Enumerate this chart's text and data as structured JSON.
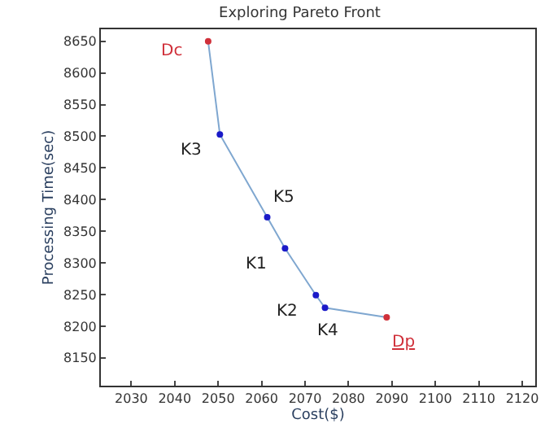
{
  "chart_data": {
    "type": "line",
    "title": "Exploring Pareto Front",
    "xlabel": "Cost($)",
    "ylabel": "Processing Time(sec)",
    "x": [
      2047.7,
      2050.4,
      2061.3,
      2065.4,
      2072.5,
      2074.6,
      2088.8
    ],
    "series": [
      {
        "color": "#7fa7d0",
        "values": [
          8650,
          8503,
          8372,
          8323,
          8249,
          8229,
          8214
        ],
        "colors": [
          "#d0303a",
          "#1a1ac8",
          "#1a1ac8",
          "#1a1ac8",
          "#1a1ac8",
          "#1a1ac8",
          "#d0303a"
        ]
      }
    ],
    "marker": "circle",
    "annotations": [
      {
        "text": "Dc",
        "x": 2047.7,
        "y": 8650
      },
      {
        "text": "K3",
        "x": 2050.4,
        "y": 8503
      },
      {
        "text": "K5",
        "x": 2061.3,
        "y": 8372
      },
      {
        "text": "K1",
        "x": 2065.4,
        "y": 8323
      },
      {
        "text": "K2",
        "x": 2072.5,
        "y": 8249
      },
      {
        "text": "K4",
        "x": 2074.6,
        "y": 8229
      },
      {
        "text": "Dp",
        "x": 2088.8,
        "y": 8214
      }
    ],
    "xlim": [
      2023,
      2123
    ],
    "xticks": [
      2030,
      2040,
      2050,
      2060,
      2070,
      2080,
      2090,
      2100,
      2110,
      2120
    ],
    "ylim": [
      8106,
      8669
    ],
    "yticks": [
      8150,
      8200,
      8250,
      8300,
      8350,
      8400,
      8450,
      8500,
      8550,
      8600,
      8650
    ]
  }
}
